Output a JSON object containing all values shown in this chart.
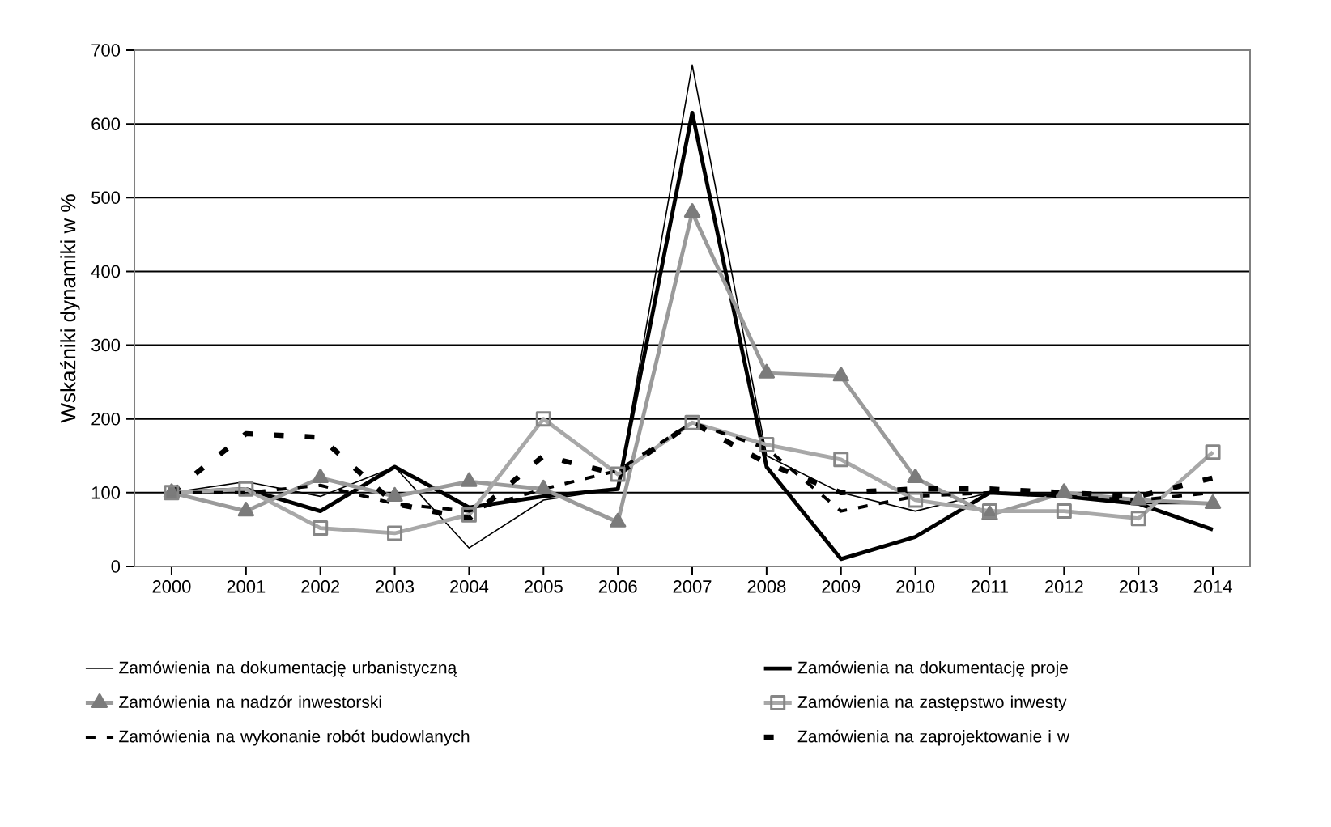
{
  "chart_data": {
    "type": "line",
    "ylabel": "Wskaźniki dynamiki w %",
    "categories": [
      "2000",
      "2001",
      "2002",
      "2003",
      "2004",
      "2005",
      "2006",
      "2007",
      "2008",
      "2009",
      "2010",
      "2011",
      "2012",
      "2013",
      "2014"
    ],
    "ylim": [
      0,
      700
    ],
    "yticks": [
      0,
      100,
      200,
      300,
      400,
      500,
      600,
      700
    ],
    "grid": "y",
    "legend": "bottom",
    "series": [
      {
        "name": "Zamówienia na dokumentację urbanistyczną",
        "color": "#000000",
        "marker": "none",
        "line_style": "solid",
        "values": [
          100,
          115,
          95,
          135,
          25,
          90,
          105,
          680,
          150,
          100,
          75,
          100,
          100,
          85,
          85
        ]
      },
      {
        "name": "Zamówienia na dokumentację proje",
        "color": "#000000",
        "marker": "none",
        "line_style": "solid",
        "values": [
          100,
          105,
          75,
          135,
          80,
          95,
          105,
          615,
          135,
          10,
          40,
          100,
          95,
          85,
          50
        ]
      },
      {
        "name": "Zamówienia na nadzór inwestorski",
        "color": "#9a9a9a",
        "marker": "triangle",
        "line_style": "solid",
        "values": [
          100,
          75,
          120,
          95,
          115,
          105,
          60,
          480,
          262,
          258,
          120,
          70,
          100,
          90,
          85
        ]
      },
      {
        "name": "Zamówienia na zastępstwo inwesty",
        "color": "#a8a8a8",
        "marker": "square",
        "line_style": "solid",
        "values": [
          100,
          105,
          52,
          45,
          70,
          200,
          125,
          195,
          165,
          145,
          90,
          75,
          75,
          65,
          155
        ]
      },
      {
        "name": "Zamówienia na wykonanie robót budowlanych",
        "color": "#000000",
        "marker": "none",
        "line_style": "dashed",
        "values": [
          100,
          100,
          110,
          85,
          75,
          105,
          130,
          195,
          160,
          75,
          95,
          100,
          95,
          90,
          100
        ]
      },
      {
        "name": "Zamówienia na zaprojektowanie i w",
        "color": "#000000",
        "marker": "none",
        "line_style": "dashed",
        "values": [
          100,
          180,
          175,
          85,
          65,
          150,
          125,
          195,
          140,
          100,
          105,
          105,
          100,
          95,
          120
        ]
      }
    ]
  }
}
